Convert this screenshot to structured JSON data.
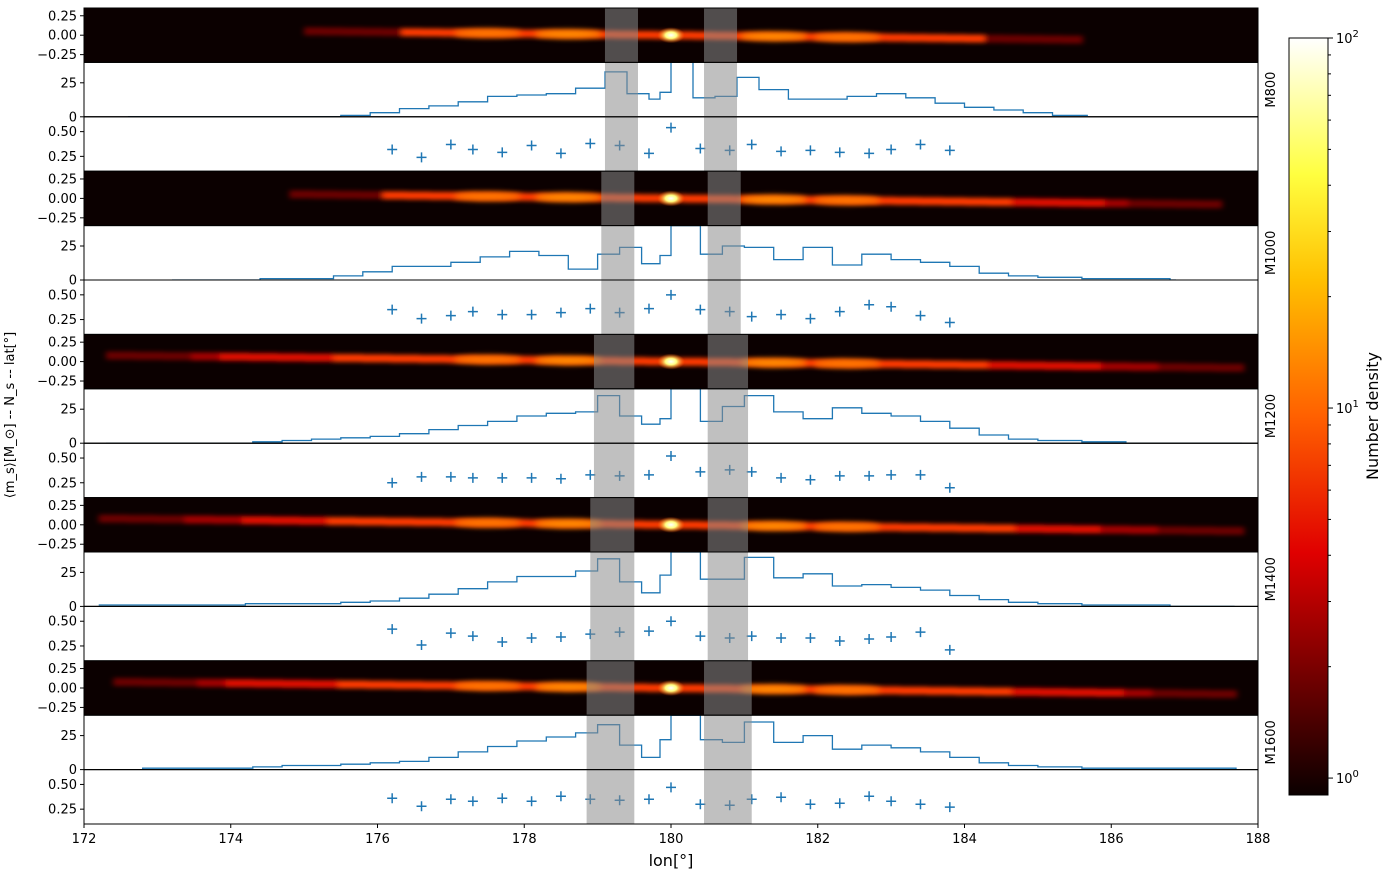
{
  "figure": {
    "xlabel": "lon[°]",
    "ylabel": "⟨m_s⟩[M_⊙] -- N_s -- lat[°]",
    "colorbar_label": "Number density",
    "colorbar_ticks": [
      "10^0",
      "10^1",
      "10^2"
    ],
    "colorbar_scale": "log",
    "colormap": "hot"
  },
  "chart_data": {
    "type": "heatmap",
    "x_range": [
      172,
      188
    ],
    "x_ticks": [
      172,
      174,
      176,
      178,
      180,
      182,
      184,
      186,
      188
    ],
    "colorbar_range": [
      0.9,
      100
    ],
    "panel_yticks": {
      "lat": [
        "0.25",
        "0.00",
        "−0.25"
      ],
      "count": [
        "25",
        "0"
      ],
      "mass": [
        "0.50",
        "0.25"
      ]
    },
    "models": [
      {
        "name": "M800",
        "lat_ylim": [
          -0.35,
          0.35
        ],
        "count_ylim": [
          0,
          40
        ],
        "mass_ylim": [
          0.1,
          0.65
        ],
        "gap_bands": [
          [
            179.1,
            179.55
          ],
          [
            180.45,
            180.9
          ]
        ],
        "lon_extent": [
          175.0,
          185.6
        ],
        "mass_x": [
          176.2,
          176.6,
          177.0,
          177.3,
          177.7,
          178.1,
          178.5,
          178.9,
          179.3,
          179.7,
          180.0,
          180.4,
          180.8,
          181.1,
          181.5,
          181.9,
          182.3,
          182.7,
          183.0,
          183.4,
          183.8
        ],
        "mass_y": [
          0.32,
          0.24,
          0.37,
          0.32,
          0.29,
          0.36,
          0.28,
          0.38,
          0.36,
          0.28,
          0.54,
          0.33,
          0.31,
          0.37,
          0.3,
          0.31,
          0.29,
          0.28,
          0.32,
          0.37,
          0.31
        ],
        "count_x": [
          172.6,
          173.7,
          174.3,
          175.1,
          175.5,
          175.9,
          176.3,
          176.7,
          177.1,
          177.5,
          177.9,
          178.3,
          178.7,
          179.1,
          179.4,
          179.7,
          179.85,
          180.0,
          180.15,
          180.3,
          180.6,
          180.9,
          181.2,
          181.6,
          182.0,
          182.4,
          182.8,
          183.2,
          183.6,
          184.0,
          184.4,
          184.8,
          185.2,
          185.6
        ],
        "count_y": [
          0,
          0,
          0,
          0,
          1,
          3,
          6,
          8,
          11,
          15,
          16,
          17,
          21,
          33,
          17,
          13,
          18,
          40,
          40,
          14,
          15,
          29,
          20,
          13,
          13,
          15,
          17,
          14,
          10,
          7,
          5,
          3,
          1,
          1
        ]
      },
      {
        "name": "M1000",
        "lat_ylim": [
          -0.35,
          0.35
        ],
        "count_ylim": [
          0,
          40
        ],
        "mass_ylim": [
          0.1,
          0.65
        ],
        "gap_bands": [
          [
            179.05,
            179.5
          ],
          [
            180.5,
            180.95
          ]
        ],
        "lon_extent": [
          174.8,
          187.5
        ],
        "mass_x": [
          176.2,
          176.6,
          177.0,
          177.3,
          177.7,
          178.1,
          178.5,
          178.9,
          179.3,
          179.7,
          180.0,
          180.4,
          180.8,
          181.1,
          181.5,
          181.9,
          182.3,
          182.7,
          183.0,
          183.4,
          183.8
        ],
        "mass_y": [
          0.35,
          0.26,
          0.29,
          0.33,
          0.3,
          0.3,
          0.32,
          0.36,
          0.32,
          0.36,
          0.5,
          0.35,
          0.33,
          0.28,
          0.3,
          0.26,
          0.33,
          0.4,
          0.38,
          0.29,
          0.22
        ],
        "count_x": [
          173.2,
          173.6,
          174.0,
          174.4,
          175.0,
          175.4,
          175.8,
          176.2,
          176.6,
          177.0,
          177.4,
          177.8,
          178.2,
          178.6,
          179.0,
          179.3,
          179.6,
          179.85,
          180.0,
          180.15,
          180.4,
          180.7,
          181.0,
          181.4,
          181.8,
          182.2,
          182.6,
          183.0,
          183.4,
          183.8,
          184.2,
          184.6,
          185.0,
          185.6,
          186.2,
          186.8
        ],
        "count_y": [
          0,
          0,
          0,
          1,
          1,
          3,
          6,
          10,
          10,
          13,
          17,
          21,
          18,
          8,
          19,
          24,
          12,
          18,
          40,
          40,
          19,
          25,
          24,
          15,
          24,
          11,
          19,
          15,
          13,
          10,
          5,
          3,
          2,
          1,
          1,
          0
        ]
      },
      {
        "name": "M1200",
        "lat_ylim": [
          -0.35,
          0.35
        ],
        "count_ylim": [
          0,
          40
        ],
        "mass_ylim": [
          0.1,
          0.65
        ],
        "gap_bands": [
          [
            178.95,
            179.5
          ],
          [
            180.5,
            181.05
          ]
        ],
        "lon_extent": [
          172.3,
          187.8
        ],
        "mass_x": [
          176.2,
          176.6,
          177.0,
          177.3,
          177.7,
          178.1,
          178.5,
          178.9,
          179.3,
          179.7,
          180.0,
          180.4,
          180.8,
          181.1,
          181.5,
          181.9,
          182.3,
          182.7,
          183.0,
          183.4,
          183.8
        ],
        "mass_y": [
          0.25,
          0.31,
          0.31,
          0.3,
          0.3,
          0.3,
          0.29,
          0.33,
          0.32,
          0.33,
          0.52,
          0.36,
          0.38,
          0.36,
          0.3,
          0.28,
          0.32,
          0.32,
          0.33,
          0.33,
          0.2
        ],
        "count_x": [
          172.3,
          172.9,
          173.3,
          174.3,
          174.7,
          175.1,
          175.5,
          175.9,
          176.3,
          176.7,
          177.1,
          177.5,
          177.9,
          178.3,
          178.7,
          179.0,
          179.3,
          179.6,
          179.85,
          180.0,
          180.15,
          180.4,
          180.7,
          181.0,
          181.4,
          181.8,
          182.2,
          182.6,
          183.0,
          183.4,
          183.8,
          184.2,
          184.6,
          185.0,
          185.6,
          186.2,
          186.8,
          187.7
        ],
        "count_y": [
          0,
          0,
          0,
          1,
          2,
          3,
          4,
          5,
          7,
          10,
          13,
          16,
          20,
          22,
          23,
          35,
          20,
          14,
          18,
          40,
          40,
          16,
          27,
          35,
          23,
          18,
          26,
          22,
          20,
          16,
          11,
          6,
          3,
          2,
          1,
          0,
          0,
          0
        ]
      },
      {
        "name": "M1400",
        "lat_ylim": [
          -0.35,
          0.35
        ],
        "count_ylim": [
          0,
          40
        ],
        "mass_ylim": [
          0.1,
          0.65
        ],
        "gap_bands": [
          [
            178.9,
            179.5
          ],
          [
            180.5,
            181.05
          ]
        ],
        "lon_extent": [
          172.2,
          187.8
        ],
        "mass_x": [
          176.2,
          176.6,
          177.0,
          177.3,
          177.7,
          178.1,
          178.5,
          178.9,
          179.3,
          179.7,
          180.0,
          180.4,
          180.8,
          181.1,
          181.5,
          181.9,
          182.3,
          182.7,
          183.0,
          183.4,
          183.8
        ],
        "mass_y": [
          0.42,
          0.26,
          0.38,
          0.35,
          0.29,
          0.33,
          0.34,
          0.37,
          0.39,
          0.4,
          0.5,
          0.35,
          0.33,
          0.35,
          0.33,
          0.33,
          0.3,
          0.32,
          0.34,
          0.39,
          0.21
        ],
        "count_x": [
          172.2,
          172.8,
          173.3,
          173.8,
          174.2,
          174.7,
          175.1,
          175.5,
          175.9,
          176.3,
          176.7,
          177.1,
          177.5,
          177.9,
          178.3,
          178.7,
          179.0,
          179.3,
          179.6,
          179.85,
          180.0,
          180.15,
          180.4,
          180.7,
          181.0,
          181.4,
          181.8,
          182.2,
          182.6,
          183.0,
          183.4,
          183.8,
          184.2,
          184.6,
          185.0,
          185.6,
          186.2,
          186.8,
          187.6
        ],
        "count_y": [
          1,
          1,
          1,
          1,
          2,
          2,
          2,
          3,
          4,
          6,
          9,
          13,
          18,
          22,
          22,
          26,
          35,
          18,
          10,
          23,
          40,
          40,
          20,
          20,
          36,
          21,
          24,
          15,
          16,
          14,
          12,
          8,
          5,
          3,
          2,
          1,
          1,
          0,
          0
        ]
      },
      {
        "name": "M1600",
        "lat_ylim": [
          -0.35,
          0.35
        ],
        "count_ylim": [
          0,
          40
        ],
        "mass_ylim": [
          0.1,
          0.65
        ],
        "gap_bands": [
          [
            178.85,
            179.5
          ],
          [
            180.45,
            181.1
          ]
        ],
        "lon_extent": [
          172.4,
          187.7
        ],
        "mass_x": [
          176.2,
          176.6,
          177.0,
          177.3,
          177.7,
          178.1,
          178.5,
          178.9,
          179.3,
          179.7,
          180.0,
          180.4,
          180.8,
          181.1,
          181.5,
          181.9,
          182.3,
          182.7,
          183.0,
          183.4,
          183.8
        ],
        "mass_y": [
          0.36,
          0.28,
          0.35,
          0.33,
          0.36,
          0.33,
          0.38,
          0.35,
          0.34,
          0.35,
          0.47,
          0.3,
          0.29,
          0.35,
          0.37,
          0.3,
          0.31,
          0.38,
          0.33,
          0.3,
          0.27
        ],
        "count_x": [
          172.4,
          172.8,
          173.4,
          173.9,
          174.3,
          174.7,
          175.1,
          175.5,
          175.9,
          176.3,
          176.7,
          177.1,
          177.5,
          177.9,
          178.3,
          178.7,
          179.0,
          179.3,
          179.6,
          179.85,
          180.0,
          180.15,
          180.4,
          180.7,
          181.0,
          181.4,
          181.8,
          182.2,
          182.6,
          183.0,
          183.4,
          183.8,
          184.2,
          184.6,
          185.0,
          185.6,
          186.2,
          186.8,
          187.7
        ],
        "count_y": [
          0,
          1,
          1,
          1,
          2,
          3,
          3,
          4,
          5,
          6,
          9,
          13,
          17,
          21,
          24,
          27,
          33,
          18,
          9,
          22,
          40,
          40,
          22,
          20,
          35,
          20,
          25,
          15,
          18,
          16,
          13,
          9,
          5,
          3,
          2,
          1,
          1,
          1,
          0
        ]
      }
    ]
  }
}
